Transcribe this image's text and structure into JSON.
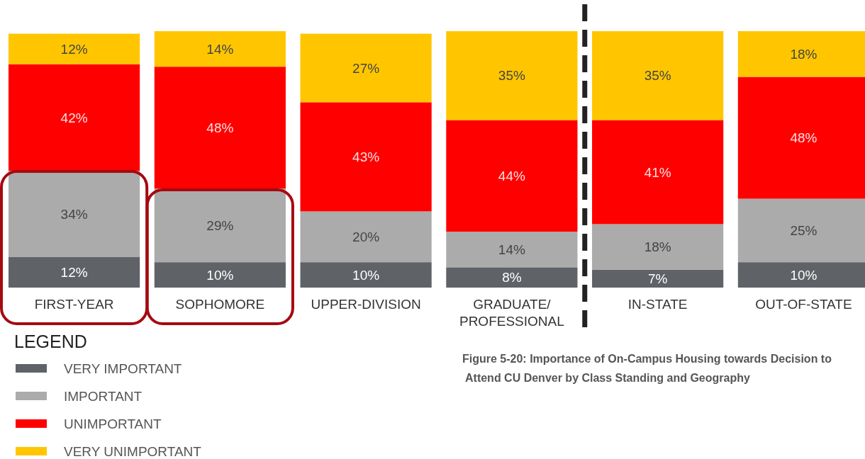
{
  "chart_data": {
    "type": "bar",
    "stacked": true,
    "title": "Figure 5-20: Importance of On-Campus Housing towards Decision to Attend CU Denver by Class Standing and Geography",
    "legend_title": "LEGEND",
    "legend": "bottom left",
    "categories": [
      "FIRST-YEAR",
      "SOPHOMORE",
      "UPPER-DIVISION",
      "GRADUATE/ PROFESSIONAL",
      "IN-STATE",
      "OUT-OF-STATE"
    ],
    "series": [
      {
        "name": "VERY IMPORTANT",
        "color": "#5f6266",
        "values": [
          12,
          10,
          10,
          8,
          7,
          10
        ],
        "value_labels": [
          "12%",
          "10%",
          "10%",
          "8%",
          "7%",
          "10%"
        ]
      },
      {
        "name": "IMPORTANT",
        "color": "#ababab",
        "values": [
          34,
          29,
          20,
          14,
          18,
          25
        ],
        "value_labels": [
          "34%",
          "29%",
          "20%",
          "14%",
          "18%",
          "25%"
        ]
      },
      {
        "name": "UNIMPORTANT",
        "color": "#ff0000",
        "values": [
          42,
          48,
          43,
          44,
          41,
          48
        ],
        "value_labels": [
          "42%",
          "48%",
          "43%",
          "44%",
          "41%",
          "48%"
        ]
      },
      {
        "name": "VERY UNIMPORTANT",
        "color": "#ffc600",
        "values": [
          12,
          14,
          27,
          35,
          35,
          18
        ],
        "value_labels": [
          "12%",
          "14%",
          "27%",
          "35%",
          "35%",
          "18%"
        ]
      }
    ]
  }
}
